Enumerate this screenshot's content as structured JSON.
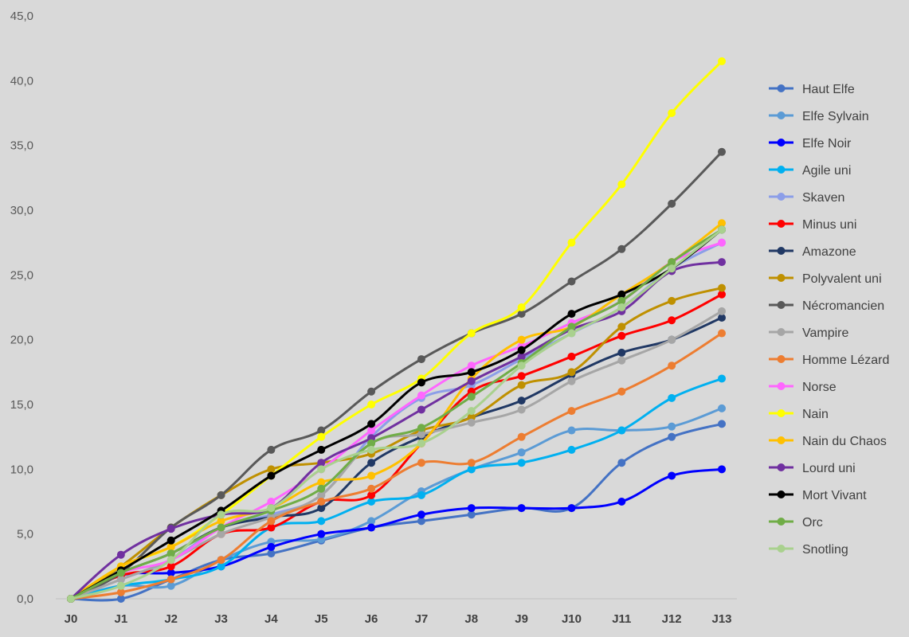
{
  "chart_data": {
    "type": "line",
    "categories": [
      "J0",
      "J1",
      "J2",
      "J3",
      "J4",
      "J5",
      "J6",
      "J7",
      "J8",
      "J9",
      "J10",
      "J11",
      "J12",
      "J13"
    ],
    "ylim": [
      0,
      45
    ],
    "yticks": [
      "0,0",
      "5,0",
      "10,0",
      "15,0",
      "20,0",
      "25,0",
      "30,0",
      "35,0",
      "40,0",
      "45,0"
    ],
    "ytick_values": [
      0,
      5,
      10,
      15,
      20,
      25,
      30,
      35,
      40,
      45
    ],
    "grid": false,
    "legend_position": "right",
    "series": [
      {
        "name": "Haut Elfe",
        "color": "#4472c4",
        "values": [
          0,
          0,
          1.5,
          3,
          3.5,
          4.5,
          5.5,
          6,
          6.5,
          7,
          7,
          10.5,
          12.5,
          13.5
        ]
      },
      {
        "name": "Elfe Sylvain",
        "color": "#5b9bd5",
        "values": [
          0,
          1,
          1,
          3,
          4.4,
          4.6,
          6,
          8.3,
          10,
          11.3,
          13,
          13,
          13.3,
          14.7
        ]
      },
      {
        "name": "Elfe Noir",
        "color": "#0000ff",
        "values": [
          0,
          1.8,
          2,
          2.5,
          4,
          5,
          5.5,
          6.5,
          7,
          7,
          7,
          7.5,
          9.5,
          10
        ]
      },
      {
        "name": "Agile uni",
        "color": "#00b0f0",
        "values": [
          0,
          1,
          1.5,
          2.5,
          5.5,
          6,
          7.5,
          8,
          10,
          10.5,
          11.5,
          13,
          15.5,
          17
        ]
      },
      {
        "name": "Skaven",
        "color": "#8c9ee8",
        "values": [
          0,
          1.5,
          3,
          5.5,
          6.5,
          8,
          12.5,
          15.5,
          16.5,
          18.5,
          20.5,
          22.5,
          25.5,
          27.5
        ]
      },
      {
        "name": "Minus uni",
        "color": "#ff0000",
        "values": [
          0,
          1.8,
          2.5,
          5,
          5.5,
          7.5,
          8,
          12,
          16,
          17.2,
          18.7,
          20.3,
          21.5,
          23.5
        ]
      },
      {
        "name": "Amazone",
        "color": "#203864",
        "values": [
          0,
          2,
          3.5,
          5.5,
          6.3,
          7,
          10.5,
          12.5,
          14,
          15.3,
          17.3,
          19,
          20,
          21.7
        ]
      },
      {
        "name": "Polyvalent uni",
        "color": "#bf9000",
        "values": [
          0,
          2.5,
          5.5,
          8,
          10,
          10.5,
          11.2,
          13,
          14,
          16.5,
          17.5,
          21,
          23,
          24
        ]
      },
      {
        "name": "Nécromancien",
        "color": "#595959",
        "values": [
          0,
          2,
          5.5,
          8,
          11.5,
          13,
          16,
          18.5,
          20.5,
          22,
          24.5,
          27,
          30.5,
          34.5
        ]
      },
      {
        "name": "Vampire",
        "color": "#a6a6a6",
        "values": [
          0,
          1.5,
          3,
          5,
          6.3,
          8,
          12,
          12.7,
          13.6,
          14.6,
          16.8,
          18.4,
          20,
          22.2
        ]
      },
      {
        "name": "Homme Lézard",
        "color": "#ed7d31",
        "values": [
          0,
          0.5,
          1.5,
          3,
          6,
          7.5,
          8.5,
          10.5,
          10.5,
          12.5,
          14.5,
          16,
          18,
          20.5
        ]
      },
      {
        "name": "Norse",
        "color": "#ff66ff",
        "values": [
          0,
          2,
          3,
          5.5,
          7.5,
          10,
          13,
          15.7,
          18,
          19.5,
          21.3,
          23,
          26,
          27.5
        ]
      },
      {
        "name": "Nain",
        "color": "#ffff00",
        "values": [
          0,
          2.5,
          4,
          6.5,
          9.5,
          12.5,
          15,
          17,
          20.5,
          22.5,
          27.5,
          32,
          37.5,
          41.5
        ]
      },
      {
        "name": "Nain du Chaos",
        "color": "#ffc000",
        "values": [
          0,
          2.5,
          4,
          6,
          7,
          9,
          9.5,
          12,
          17,
          20,
          21,
          23.5,
          26,
          29
        ]
      },
      {
        "name": "Lourd uni",
        "color": "#7030a0",
        "values": [
          0,
          3.4,
          5.4,
          6.5,
          7,
          10.5,
          12.4,
          14.6,
          16.8,
          18.7,
          20.8,
          22.2,
          25.3,
          26
        ]
      },
      {
        "name": "Mort Vivant",
        "color": "#000000",
        "values": [
          0,
          2.2,
          4.5,
          6.8,
          9.5,
          11.5,
          13.5,
          16.7,
          17.5,
          19.2,
          22,
          23.5,
          25.5,
          28.5
        ]
      },
      {
        "name": "Orc",
        "color": "#70ad47",
        "values": [
          0,
          2,
          3.5,
          5.5,
          6.8,
          8.5,
          12,
          13.2,
          15.6,
          18.2,
          21,
          23,
          26,
          28.5
        ]
      },
      {
        "name": "Snotling",
        "color": "#a9d18e",
        "values": [
          0,
          1,
          3,
          6.5,
          7,
          10,
          11.5,
          12,
          14.5,
          18,
          20.5,
          22.5,
          25.5,
          28.5
        ]
      }
    ]
  }
}
